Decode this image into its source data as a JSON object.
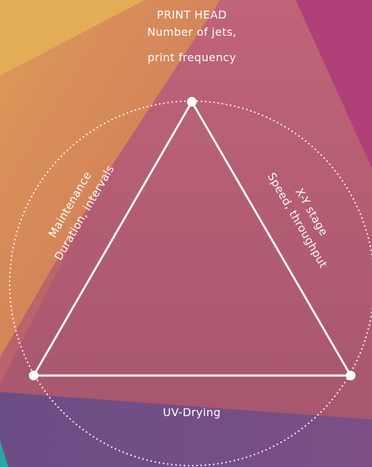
{
  "diagram": {
    "top_node": {
      "title": "PRINT HEAD",
      "subtitle_line1": "Number of jets,",
      "subtitle_line2": "print frequency"
    },
    "left_side": {
      "title": "Maintenance",
      "subtitle": "Duration, intervals"
    },
    "right_side": {
      "title": "X-Y stage",
      "subtitle": "Speed, throughput"
    },
    "bottom_side": {
      "title": "UV-Drying"
    },
    "colors": {
      "background": "#8d4f7b",
      "orange_band": "#dc8a55",
      "yellow_band": "#e3ad58",
      "pink_band": "#b8607a",
      "magenta_corner": "#b23f78",
      "purple_band": "#74528a",
      "teal_corner": "#2aa6a6",
      "lines": "#ffffff"
    }
  }
}
